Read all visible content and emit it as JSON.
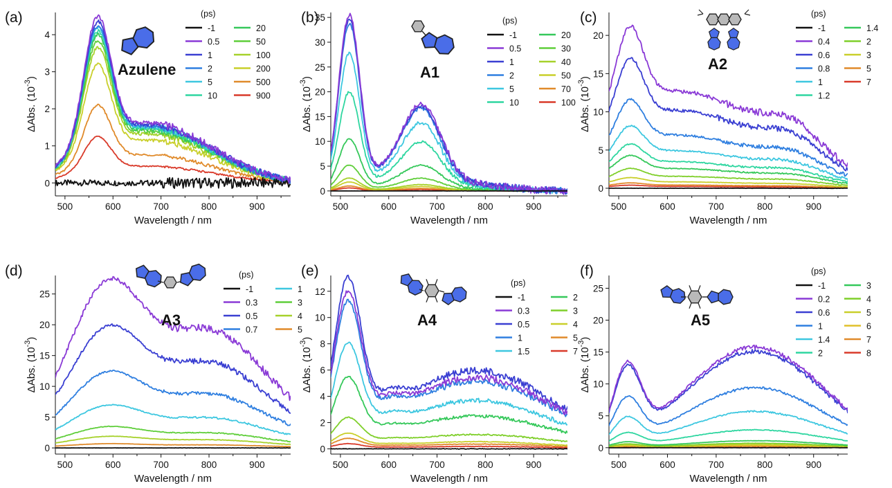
{
  "colors": {
    "-1": "#111111",
    "purple": "#8a3ad6",
    "indigo": "#3a3fd2",
    "blue": "#2f7fe0",
    "cyan": "#3dc7e0",
    "teal": "#2ed6a0",
    "green": "#35c85a",
    "lgreen": "#7fcf2a",
    "yellow": "#c9cf2a",
    "orange": "#e08a2a",
    "red": "#d93a2a"
  },
  "chart_data": [
    {
      "panel": "(a)",
      "compound": "Azulene",
      "type": "line",
      "xlabel": "Wavelength / nm",
      "ylabel": "ΔAbs. (10",
      "ylabel_exp": "-3",
      "ylabel_close": ")",
      "xlim": [
        480,
        970
      ],
      "ylim": [
        -0.35,
        4.6
      ],
      "xticks": [
        500,
        600,
        700,
        800,
        900
      ],
      "yticks": [
        0,
        1,
        2,
        3,
        4
      ],
      "legend_title": "(ps)",
      "dashed_zero": true,
      "series": [
        {
          "name": "-1",
          "color": "#111111",
          "peak": 0.05,
          "shape": "flat",
          "noise": 0.08
        },
        {
          "name": "0.5",
          "color": "#8a3ad6",
          "peak": 4.5,
          "shape": "azulene"
        },
        {
          "name": "1",
          "color": "#3a3fd2",
          "peak": 4.35,
          "shape": "azulene"
        },
        {
          "name": "2",
          "color": "#2f7fe0",
          "peak": 4.25,
          "shape": "azulene"
        },
        {
          "name": "5",
          "color": "#3dc7e0",
          "peak": 4.2,
          "shape": "azulene"
        },
        {
          "name": "10",
          "color": "#2ed6a0",
          "peak": 4.1,
          "shape": "azulene"
        },
        {
          "name": "20",
          "color": "#35c85a",
          "peak": 4.0,
          "shape": "azulene"
        },
        {
          "name": "50",
          "color": "#5fce3a",
          "peak": 3.85,
          "shape": "azulene"
        },
        {
          "name": "100",
          "color": "#a6d12a",
          "peak": 3.65,
          "shape": "azulene"
        },
        {
          "name": "200",
          "color": "#c9cf2a",
          "peak": 3.2,
          "shape": "azulene"
        },
        {
          "name": "500",
          "color": "#e08a2a",
          "peak": 2.1,
          "shape": "azulene"
        },
        {
          "name": "900",
          "color": "#d93a2a",
          "peak": 1.25,
          "shape": "azulene"
        }
      ]
    },
    {
      "panel": "(b)",
      "compound": "A1",
      "type": "line",
      "xlabel": "Wavelength / nm",
      "ylabel": "ΔAbs. (10",
      "ylabel_exp": "-3",
      "ylabel_close": ")",
      "xlim": [
        480,
        970
      ],
      "ylim": [
        -1,
        36
      ],
      "xticks": [
        500,
        600,
        700,
        800,
        900
      ],
      "yticks": [
        0,
        5,
        10,
        15,
        20,
        25,
        30,
        35
      ],
      "legend_title": "(ps)",
      "series": [
        {
          "name": "-1",
          "color": "#111111",
          "peak": 0.3,
          "shape": "flat"
        },
        {
          "name": "0.5",
          "color": "#8a3ad6",
          "peak": 35.5,
          "shape": "a1"
        },
        {
          "name": "1",
          "color": "#3a3fd2",
          "peak": 34.5,
          "shape": "a1"
        },
        {
          "name": "2",
          "color": "#2f7fe0",
          "peak": 33.8,
          "shape": "a1"
        },
        {
          "name": "5",
          "color": "#3dc7e0",
          "peak": 27.8,
          "shape": "a1"
        },
        {
          "name": "10",
          "color": "#2ed6a0",
          "peak": 20.0,
          "shape": "a1"
        },
        {
          "name": "20",
          "color": "#35c85a",
          "peak": 10.5,
          "shape": "a1"
        },
        {
          "name": "30",
          "color": "#5fce3a",
          "peak": 5.2,
          "shape": "a1"
        },
        {
          "name": "40",
          "color": "#a6d12a",
          "peak": 2.6,
          "shape": "a1"
        },
        {
          "name": "50",
          "color": "#c9cf2a",
          "peak": 1.8,
          "shape": "a1"
        },
        {
          "name": "70",
          "color": "#e08a2a",
          "peak": 1.0,
          "shape": "a1"
        },
        {
          "name": "100",
          "color": "#d93a2a",
          "peak": 0.6,
          "shape": "a1"
        }
      ]
    },
    {
      "panel": "(c)",
      "compound": "A2",
      "type": "line",
      "xlabel": "Wavelength / nm",
      "ylabel": "ΔAbs. (10",
      "ylabel_exp": "-3",
      "ylabel_close": ")",
      "xlim": [
        480,
        970
      ],
      "ylim": [
        -1,
        23
      ],
      "xticks": [
        500,
        600,
        700,
        800,
        900
      ],
      "yticks": [
        0,
        5,
        10,
        15,
        20
      ],
      "legend_title": "(ps)",
      "series": [
        {
          "name": "-1",
          "color": "#111111",
          "peak": 0.2,
          "shape": "flat"
        },
        {
          "name": "0.4",
          "color": "#8a3ad6",
          "peak": 21.2,
          "shape": "a2"
        },
        {
          "name": "0.6",
          "color": "#3a3fd2",
          "peak": 17.0,
          "shape": "a2"
        },
        {
          "name": "0.8",
          "color": "#2f7fe0",
          "peak": 11.6,
          "shape": "a2"
        },
        {
          "name": "1",
          "color": "#3dc7e0",
          "peak": 8.2,
          "shape": "a2"
        },
        {
          "name": "1.2",
          "color": "#2ed6a0",
          "peak": 5.8,
          "shape": "a2"
        },
        {
          "name": "1.4",
          "color": "#35c85a",
          "peak": 4.3,
          "shape": "a2"
        },
        {
          "name": "2",
          "color": "#7fcf2a",
          "peak": 2.6,
          "shape": "a2"
        },
        {
          "name": "3",
          "color": "#c9cf2a",
          "peak": 1.4,
          "shape": "a2"
        },
        {
          "name": "5",
          "color": "#e08a2a",
          "peak": 0.7,
          "shape": "a2"
        },
        {
          "name": "7",
          "color": "#d93a2a",
          "peak": 0.4,
          "shape": "a2"
        }
      ]
    },
    {
      "panel": "(d)",
      "compound": "A3",
      "type": "line",
      "xlabel": "Wavelength / nm",
      "ylabel": "ΔAbs. (10",
      "ylabel_exp": "-3",
      "ylabel_close": ")",
      "xlim": [
        480,
        970
      ],
      "ylim": [
        -1,
        28
      ],
      "xticks": [
        500,
        600,
        700,
        800,
        900
      ],
      "yticks": [
        0,
        5,
        10,
        15,
        20,
        25
      ],
      "legend_title": "(ps)",
      "series": [
        {
          "name": "-1",
          "color": "#111111",
          "peak": 0.15,
          "shape": "flat"
        },
        {
          "name": "0.3",
          "color": "#8a3ad6",
          "peak": 27.5,
          "shape": "a3"
        },
        {
          "name": "0.5",
          "color": "#3a3fd2",
          "peak": 19.9,
          "shape": "a3"
        },
        {
          "name": "0.7",
          "color": "#2f7fe0",
          "peak": 12.5,
          "shape": "a3"
        },
        {
          "name": "1",
          "color": "#3dc7e0",
          "peak": 7.0,
          "shape": "a3"
        },
        {
          "name": "3",
          "color": "#5fce3a",
          "peak": 3.5,
          "shape": "a3"
        },
        {
          "name": "4",
          "color": "#a6d12a",
          "peak": 1.9,
          "shape": "a3"
        },
        {
          "name": "5",
          "color": "#e08a2a",
          "peak": 0.7,
          "shape": "a3"
        }
      ]
    },
    {
      "panel": "(e)",
      "compound": "A4",
      "type": "line",
      "xlabel": "Wavelength / nm",
      "ylabel": "ΔAbs. (10",
      "ylabel_exp": "-3",
      "ylabel_close": ")",
      "xlim": [
        480,
        970
      ],
      "ylim": [
        -0.4,
        13.2
      ],
      "xticks": [
        500,
        600,
        700,
        800,
        900
      ],
      "yticks": [
        0,
        2,
        4,
        6,
        8,
        10,
        12
      ],
      "legend_title": "(ps)",
      "series": [
        {
          "name": "-1",
          "color": "#111111",
          "peak": 0.1,
          "shape": "flat"
        },
        {
          "name": "0.3",
          "color": "#8a3ad6",
          "peak": 12.0,
          "shape": "a4"
        },
        {
          "name": "0.5",
          "color": "#3a3fd2",
          "peak": 13.1,
          "shape": "a4"
        },
        {
          "name": "1",
          "color": "#2f7fe0",
          "peak": 11.3,
          "shape": "a4"
        },
        {
          "name": "1.5",
          "color": "#3dc7e0",
          "peak": 8.1,
          "shape": "a4"
        },
        {
          "name": "2",
          "color": "#35c85a",
          "peak": 5.5,
          "shape": "a4"
        },
        {
          "name": "3",
          "color": "#7fcf2a",
          "peak": 2.4,
          "shape": "a4"
        },
        {
          "name": "4",
          "color": "#c9cf2a",
          "peak": 1.2,
          "shape": "a4"
        },
        {
          "name": "5",
          "color": "#e08a2a",
          "peak": 0.8,
          "shape": "a4"
        },
        {
          "name": "7",
          "color": "#d93a2a",
          "peak": 0.4,
          "shape": "a4"
        }
      ]
    },
    {
      "panel": "(f)",
      "compound": "A5",
      "type": "line",
      "xlabel": "Wavelength / nm",
      "ylabel": "ΔAbs. (10",
      "ylabel_exp": "-3",
      "ylabel_close": ")",
      "xlim": [
        480,
        970
      ],
      "ylim": [
        -1,
        27
      ],
      "xticks": [
        500,
        600,
        700,
        800,
        900
      ],
      "yticks": [
        0,
        5,
        10,
        15,
        20,
        25
      ],
      "legend_title": "(ps)",
      "series": [
        {
          "name": "-1",
          "color": "#111111",
          "peak": 0.15,
          "shape": "flat"
        },
        {
          "name": "0.2",
          "color": "#8a3ad6",
          "peak": 15.8,
          "shape": "a5"
        },
        {
          "name": "0.6",
          "color": "#3a3fd2",
          "peak": 15.1,
          "shape": "a5"
        },
        {
          "name": "1",
          "color": "#2f7fe0",
          "peak": 9.4,
          "shape": "a5"
        },
        {
          "name": "1.4",
          "color": "#3dc7e0",
          "peak": 5.7,
          "shape": "a5"
        },
        {
          "name": "2",
          "color": "#2ed6a0",
          "peak": 2.8,
          "shape": "a5"
        },
        {
          "name": "3",
          "color": "#35c85a",
          "peak": 1.1,
          "shape": "a5"
        },
        {
          "name": "4",
          "color": "#7fcf2a",
          "peak": 0.7,
          "shape": "a5"
        },
        {
          "name": "5",
          "color": "#c9cf2a",
          "peak": 0.5,
          "shape": "a5"
        },
        {
          "name": "6",
          "color": "#e0c02a",
          "peak": 0.35,
          "shape": "a5"
        },
        {
          "name": "7",
          "color": "#e08a2a",
          "peak": 0.25,
          "shape": "a5"
        },
        {
          "name": "8",
          "color": "#d93a2a",
          "peak": 0.2,
          "shape": "a5"
        }
      ]
    }
  ]
}
